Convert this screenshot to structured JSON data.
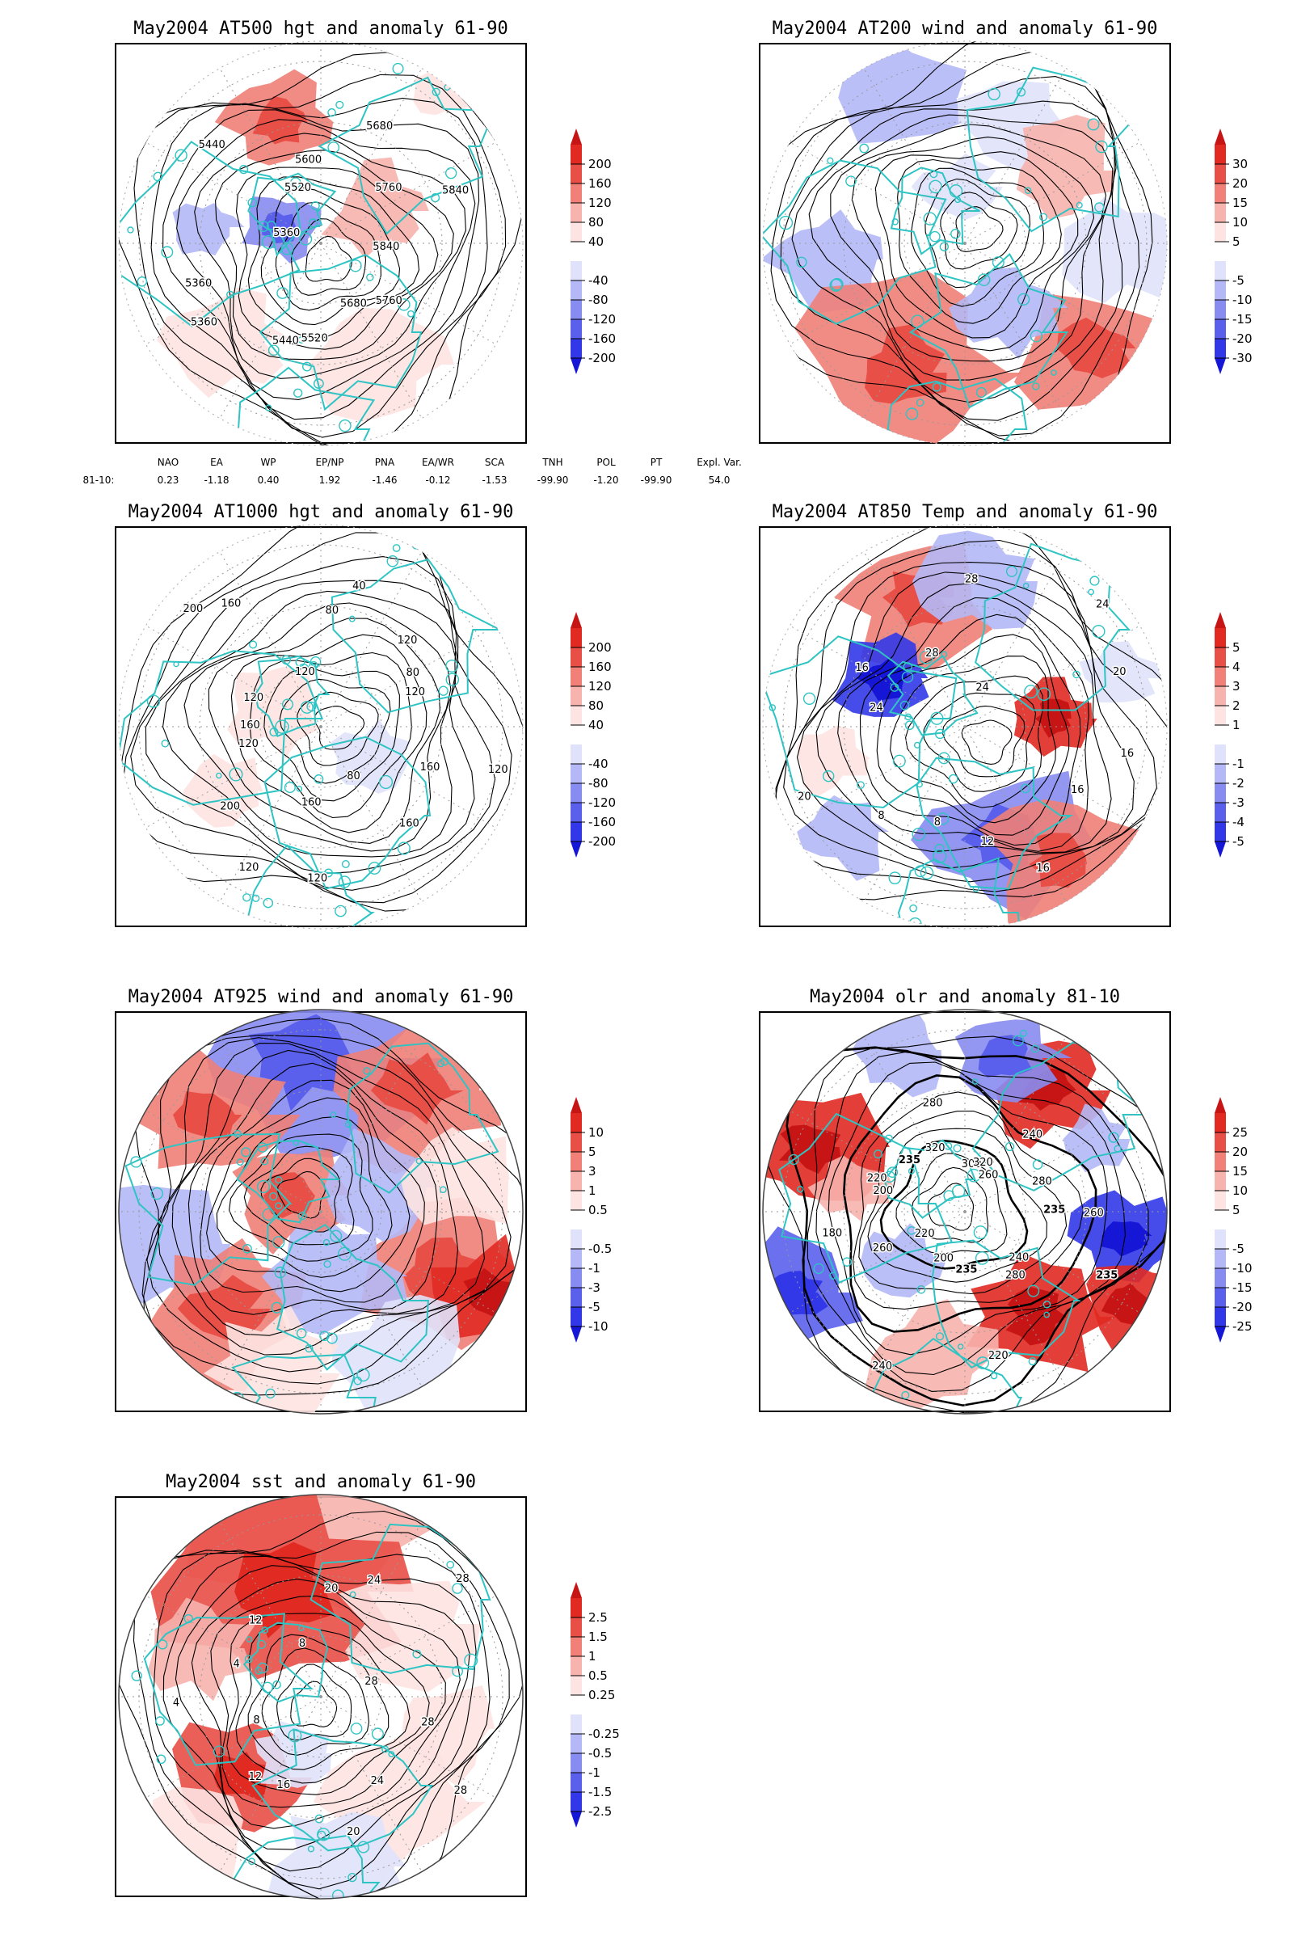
{
  "colors": {
    "coast": "#2ec4c4",
    "contour": "#000000",
    "pos_scale": [
      "#fde3e1",
      "#f7b3ad",
      "#f08078",
      "#e84f47",
      "#e02a22",
      "#c71515"
    ],
    "neg_scale": [
      "#e0e2fb",
      "#b4b8f6",
      "#878cf1",
      "#5a60ec",
      "#3238e8",
      "#1616d6"
    ]
  },
  "panels": [
    {
      "title": "May2004 AT500 hgt and anomaly 61-90",
      "colorbar": [
        "200",
        "160",
        "120",
        "80",
        "40",
        "-40",
        "-80",
        "-120",
        "-160",
        "-200"
      ],
      "contour_labels": [
        "5840",
        "5760",
        "5680",
        "5520",
        "5440",
        "5360",
        "5360",
        "5360",
        "5440",
        "5520",
        "5600",
        "5680",
        "5760",
        "5840"
      ],
      "indices": {
        "header": [
          "NAO",
          "EA",
          "WP",
          "EP/NP",
          "PNA",
          "EA/WR",
          "SCA",
          "TNH",
          "POL",
          "PT",
          "Expl. Var."
        ],
        "row_label": "81-10:",
        "values": [
          "0.23",
          "-1.18",
          "0.40",
          "1.92",
          "-1.46",
          "-0.12",
          "-1.53",
          "-99.90",
          "-1.20",
          "-99.90",
          "54.0"
        ]
      }
    },
    {
      "title": "May2004 AT200 wind and anomaly 61-90",
      "colorbar": [
        "30",
        "20",
        "15",
        "10",
        "5",
        "-5",
        "-10",
        "-15",
        "-20",
        "-30"
      ],
      "contour_labels": []
    },
    {
      "title": "May2004 AT1000 hgt and anomaly 61-90",
      "colorbar": [
        "200",
        "160",
        "120",
        "80",
        "40",
        "-40",
        "-80",
        "-120",
        "-160",
        "-200"
      ],
      "contour_labels": [
        "120",
        "160",
        "160",
        "80",
        "120",
        "160",
        "120",
        "200",
        "120",
        "160",
        "120",
        "200",
        "160",
        "120",
        "80",
        "40",
        "120",
        "80",
        "120"
      ]
    },
    {
      "title": "May2004 AT850 Temp and anomaly 61-90",
      "colorbar": [
        "5",
        "4",
        "3",
        "2",
        "1",
        "-1",
        "-2",
        "-3",
        "-4",
        "-5"
      ],
      "contour_labels": [
        "16",
        "16",
        "16",
        "12",
        "8",
        "8",
        "20",
        "24",
        "16",
        "28",
        "28",
        "24",
        "24",
        "20"
      ]
    },
    {
      "title": "May2004 AT925 wind and anomaly 61-90",
      "colorbar": [
        "10",
        "5",
        "3",
        "1",
        "0.5",
        "-0.5",
        "-1",
        "-3",
        "-5",
        "-10"
      ],
      "contour_labels": []
    },
    {
      "title": "May2004 olr and anomaly 81-10",
      "colorbar": [
        "25",
        "20",
        "15",
        "10",
        "5",
        "-5",
        "-10",
        "-15",
        "-20",
        "-25"
      ],
      "contour_labels": [
        "260",
        "235",
        "240",
        "280",
        "220",
        "235",
        "200",
        "240",
        "220",
        "260",
        "180",
        "200",
        "220",
        "235",
        "320",
        "280",
        "300",
        "320",
        "260",
        "240",
        "280",
        "235"
      ]
    },
    {
      "title": "May2004 sst and anomaly 61-90",
      "colorbar": [
        "2.5",
        "1.5",
        "1",
        "0.5",
        "0.25",
        "-0.25",
        "-0.5",
        "-1",
        "-1.5",
        "-2.5"
      ],
      "contour_labels": [
        "28",
        "28",
        "24",
        "20",
        "16",
        "12",
        "8",
        "4",
        "4",
        "12",
        "8",
        "20",
        "24",
        "28",
        "28"
      ]
    }
  ]
}
